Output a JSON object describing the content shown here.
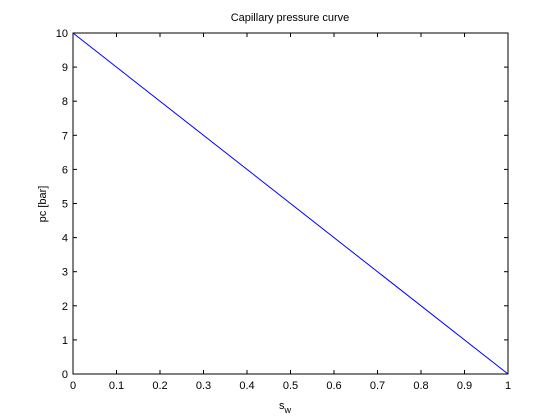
{
  "chart_data": {
    "type": "line",
    "title": "Capillary pressure curve",
    "xlabel": "s",
    "xlabel_subscript": "w",
    "ylabel": "pc [bar]",
    "xlim": [
      0,
      1
    ],
    "ylim": [
      0,
      10
    ],
    "x_ticks": [
      "0",
      "0.1",
      "0.2",
      "0.3",
      "0.4",
      "0.5",
      "0.6",
      "0.7",
      "0.8",
      "0.9",
      "1"
    ],
    "y_ticks": [
      "0",
      "1",
      "2",
      "3",
      "4",
      "5",
      "6",
      "7",
      "8",
      "9",
      "10"
    ],
    "grid": false,
    "series": [
      {
        "color": "#0000ff",
        "x": [
          0,
          1
        ],
        "y": [
          10,
          0
        ]
      }
    ]
  }
}
